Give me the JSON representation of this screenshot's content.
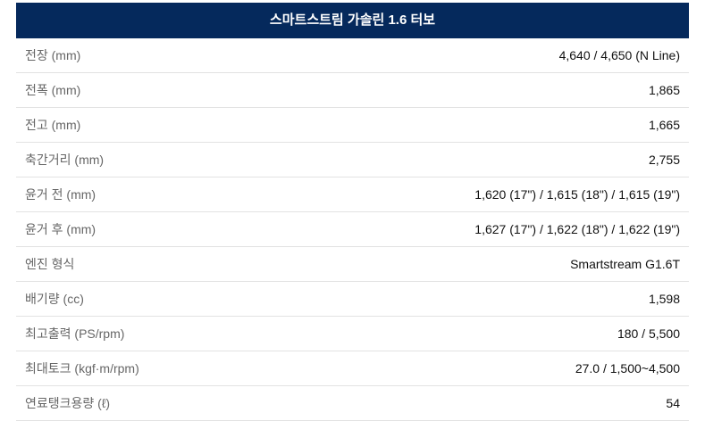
{
  "title": "스마트스트림 가솔린 1.6 터보",
  "rows": [
    {
      "label": "전장 (mm)",
      "value": "4,640 / 4,650 (N Line)"
    },
    {
      "label": "전폭 (mm)",
      "value": "1,865"
    },
    {
      "label": "전고 (mm)",
      "value": "1,665"
    },
    {
      "label": "축간거리 (mm)",
      "value": "2,755"
    },
    {
      "label": "윤거 전 (mm)",
      "value": "1,620 (17\") / 1,615 (18\") / 1,615 (19\")"
    },
    {
      "label": "윤거 후 (mm)",
      "value": "1,627 (17\") / 1,622 (18\") / 1,622 (19\")"
    },
    {
      "label": "엔진 형식",
      "value": "Smartstream G1.6T"
    },
    {
      "label": "배기량 (cc)",
      "value": "1,598"
    },
    {
      "label": "최고출력 (PS/rpm)",
      "value": "180 / 5,500"
    },
    {
      "label": "최대토크 (kgf·m/rpm)",
      "value": "27.0 / 1,500~4,500"
    },
    {
      "label": "연료탱크용량 (ℓ)",
      "value": "54"
    }
  ]
}
